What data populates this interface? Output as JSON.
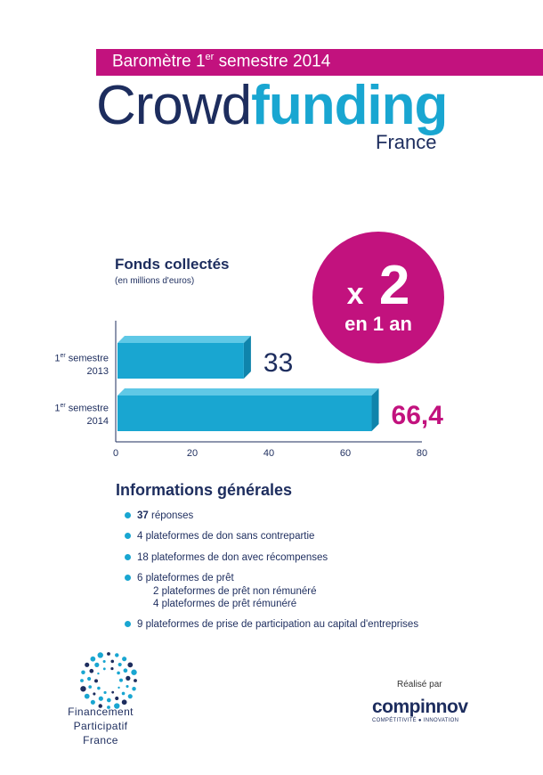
{
  "header": {
    "banner_prefix": "Baromètre 1",
    "banner_sup": "er",
    "banner_suffix": " semestre 2014",
    "title_part1": "Crowd",
    "title_part2": "funding",
    "subtitle": "France"
  },
  "badge": {
    "multiplier_x": "x",
    "multiplier_value": "2",
    "caption": "en 1 an"
  },
  "colors": {
    "magenta": "#c2127e",
    "cyan": "#19a6d1",
    "navy": "#1d2d5e"
  },
  "chart_data": {
    "type": "bar",
    "orientation": "horizontal",
    "title": "Fonds collectés",
    "subtitle": "(en millions d'euros)",
    "categories": [
      {
        "line1": "1",
        "sup": "er",
        "line1b": " semestre",
        "line2": "2013"
      },
      {
        "line1": "1",
        "sup": "er",
        "line1b": " semestre",
        "line2": "2014"
      }
    ],
    "values": [
      33,
      66.4
    ],
    "value_labels": [
      "33",
      "66,4"
    ],
    "xticks": [
      "0",
      "20",
      "40",
      "60",
      "80"
    ],
    "xlim": [
      0,
      80
    ],
    "grid": false
  },
  "info": {
    "title": "Informations générales",
    "items": [
      {
        "bold": "37",
        "text": " réponses",
        "sub": []
      },
      {
        "bold": "",
        "text": " 4  plateformes de don sans contrepartie",
        "sub": []
      },
      {
        "bold": "",
        "text": "18  plateformes de don avec récompenses",
        "sub": []
      },
      {
        "bold": "",
        "text": " 6  plateformes de prêt",
        "sub": [
          "2 plateformes de prêt non rémunéré",
          "4 plateformes de prêt rémunéré"
        ]
      },
      {
        "bold": "",
        "text": " 9  plateformes de prise de participation au capital d'entreprises",
        "sub": []
      }
    ]
  },
  "footer": {
    "ffp_line1": "Financement Participatif",
    "ffp_line2": "France",
    "realise_par": "Réalisé par",
    "compinnov": "compinnov",
    "compinnov_tag": "COMPÉTITIVITÉ ● INNOVATION"
  }
}
